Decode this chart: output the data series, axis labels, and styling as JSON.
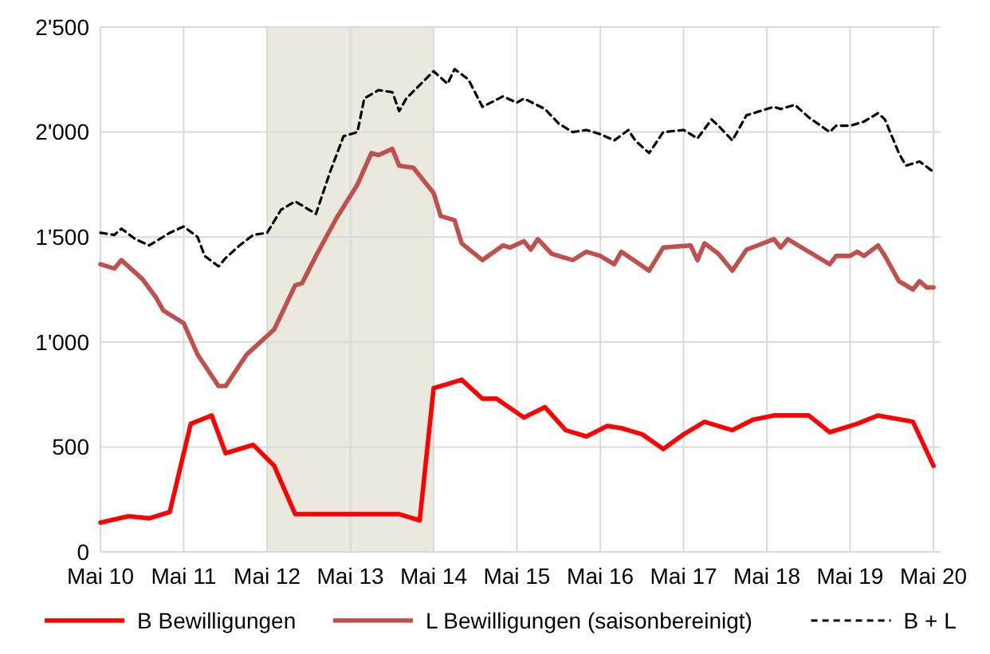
{
  "chart_data": {
    "type": "line",
    "xlim": [
      "2010-05",
      "2020-06"
    ],
    "xticks": [
      {
        "value": "2010-05",
        "label": "Mai 10"
      },
      {
        "value": "2011-05",
        "label": "Mai 11"
      },
      {
        "value": "2012-05",
        "label": "Mai 12"
      },
      {
        "value": "2013-05",
        "label": "Mai 13"
      },
      {
        "value": "2014-05",
        "label": "Mai 14"
      },
      {
        "value": "2015-05",
        "label": "Mai 15"
      },
      {
        "value": "2016-05",
        "label": "Mai 16"
      },
      {
        "value": "2017-05",
        "label": "Mai 17"
      },
      {
        "value": "2018-05",
        "label": "Mai 18"
      },
      {
        "value": "2019-05",
        "label": "Mai 19"
      },
      {
        "value": "2020-05",
        "label": "Mai 20"
      }
    ],
    "ylim": [
      0,
      2500
    ],
    "yticks": [
      0,
      500,
      {
        "value": 1000,
        "label": "1'000"
      },
      {
        "value": 1500,
        "label": "1'500"
      },
      {
        "value": 2000,
        "label": "2'000"
      },
      {
        "value": 2500,
        "label": "2'500"
      }
    ],
    "grid": true,
    "legend": "bottom",
    "bands": [
      {
        "axis": "x",
        "from": "2012-05",
        "to": "2014-05",
        "color": "#ebe8de"
      }
    ],
    "series": [
      {
        "name": "B Bewilligungen",
        "color": "#ff0000",
        "line_style": "solid",
        "x": [
          "2010-05",
          "2010-09",
          "2010-12",
          "2011-03",
          "2011-06",
          "2011-09",
          "2011-11",
          "2012-03",
          "2012-06",
          "2012-09",
          "2013-12",
          "2014-03",
          "2014-05",
          "2014-09",
          "2014-12",
          "2015-02",
          "2015-06",
          "2015-09",
          "2015-12",
          "2016-03",
          "2016-06",
          "2016-08",
          "2016-11",
          "2017-02",
          "2017-05",
          "2017-08",
          "2017-12",
          "2018-03",
          "2018-06",
          "2018-11",
          "2019-02",
          "2019-06",
          "2019-09",
          "2020-02",
          "2020-05"
        ],
        "values": [
          140,
          170,
          160,
          190,
          610,
          650,
          470,
          510,
          410,
          180,
          180,
          150,
          780,
          820,
          730,
          730,
          640,
          690,
          580,
          550,
          600,
          590,
          560,
          490,
          560,
          620,
          580,
          630,
          650,
          650,
          570,
          610,
          650,
          620,
          410
        ]
      },
      {
        "name": "L Bewilligungen (saisonbereinigt)",
        "color": "#c0504d",
        "line_style": "solid",
        "x": [
          "2010-05",
          "2010-07",
          "2010-08",
          "2010-11",
          "2011-01",
          "2011-02",
          "2011-05",
          "2011-07",
          "2011-10",
          "2011-11",
          "2012-02",
          "2012-06",
          "2012-09",
          "2012-10",
          "2012-12",
          "2013-03",
          "2013-06",
          "2013-08",
          "2013-09",
          "2013-11",
          "2013-12",
          "2014-02",
          "2014-05",
          "2014-06",
          "2014-08",
          "2014-09",
          "2014-12",
          "2015-03",
          "2015-04",
          "2015-06",
          "2015-07",
          "2015-08",
          "2015-10",
          "2016-01",
          "2016-03",
          "2016-05",
          "2016-07",
          "2016-08",
          "2016-12",
          "2017-02",
          "2017-06",
          "2017-07",
          "2017-08",
          "2017-10",
          "2017-12",
          "2018-02",
          "2018-06",
          "2018-07",
          "2018-08",
          "2018-11",
          "2019-02",
          "2019-03",
          "2019-05",
          "2019-06",
          "2019-07",
          "2019-09",
          "2019-10",
          "2019-12",
          "2020-02",
          "2020-03",
          "2020-04",
          "2020-05"
        ],
        "values": [
          1370,
          1350,
          1390,
          1300,
          1210,
          1150,
          1090,
          940,
          790,
          790,
          940,
          1060,
          1270,
          1280,
          1410,
          1590,
          1750,
          1900,
          1890,
          1920,
          1840,
          1830,
          1710,
          1600,
          1580,
          1470,
          1390,
          1460,
          1450,
          1480,
          1440,
          1490,
          1420,
          1390,
          1430,
          1410,
          1370,
          1430,
          1340,
          1450,
          1460,
          1390,
          1470,
          1420,
          1340,
          1440,
          1490,
          1450,
          1490,
          1430,
          1370,
          1410,
          1410,
          1430,
          1410,
          1460,
          1410,
          1290,
          1250,
          1290,
          1260,
          1260
        ]
      },
      {
        "name": "B + L",
        "color": "#000000",
        "line_style": "dashed",
        "x": [
          "2010-05",
          "2010-07",
          "2010-08",
          "2010-10",
          "2010-12",
          "2011-03",
          "2011-05",
          "2011-07",
          "2011-08",
          "2011-10",
          "2011-11",
          "2012-01",
          "2012-03",
          "2012-05",
          "2012-07",
          "2012-09",
          "2012-12",
          "2013-02",
          "2013-04",
          "2013-06",
          "2013-07",
          "2013-09",
          "2013-11",
          "2013-12",
          "2014-01",
          "2014-05",
          "2014-07",
          "2014-08",
          "2014-10",
          "2014-12",
          "2015-03",
          "2015-05",
          "2015-06",
          "2015-09",
          "2015-11",
          "2016-01",
          "2016-03",
          "2016-05",
          "2016-07",
          "2016-09",
          "2016-10",
          "2016-12",
          "2017-02",
          "2017-05",
          "2017-07",
          "2017-09",
          "2017-10",
          "2017-12",
          "2018-02",
          "2018-04",
          "2018-06",
          "2018-07",
          "2018-09",
          "2018-11",
          "2019-02",
          "2019-03",
          "2019-05",
          "2019-07",
          "2019-09",
          "2019-10",
          "2019-12",
          "2020-01",
          "2020-03",
          "2020-05"
        ],
        "values": [
          1520,
          1510,
          1540,
          1490,
          1460,
          1520,
          1550,
          1500,
          1410,
          1360,
          1400,
          1460,
          1510,
          1520,
          1630,
          1670,
          1610,
          1810,
          1980,
          2000,
          2160,
          2200,
          2190,
          2100,
          2160,
          2290,
          2230,
          2300,
          2250,
          2120,
          2170,
          2140,
          2160,
          2110,
          2040,
          2000,
          2010,
          1990,
          1960,
          2010,
          1960,
          1900,
          2000,
          2010,
          1970,
          2060,
          2030,
          1960,
          2080,
          2100,
          2120,
          2110,
          2130,
          2070,
          2000,
          2030,
          2030,
          2050,
          2090,
          2060,
          1900,
          1840,
          1860,
          1810
        ]
      }
    ]
  }
}
